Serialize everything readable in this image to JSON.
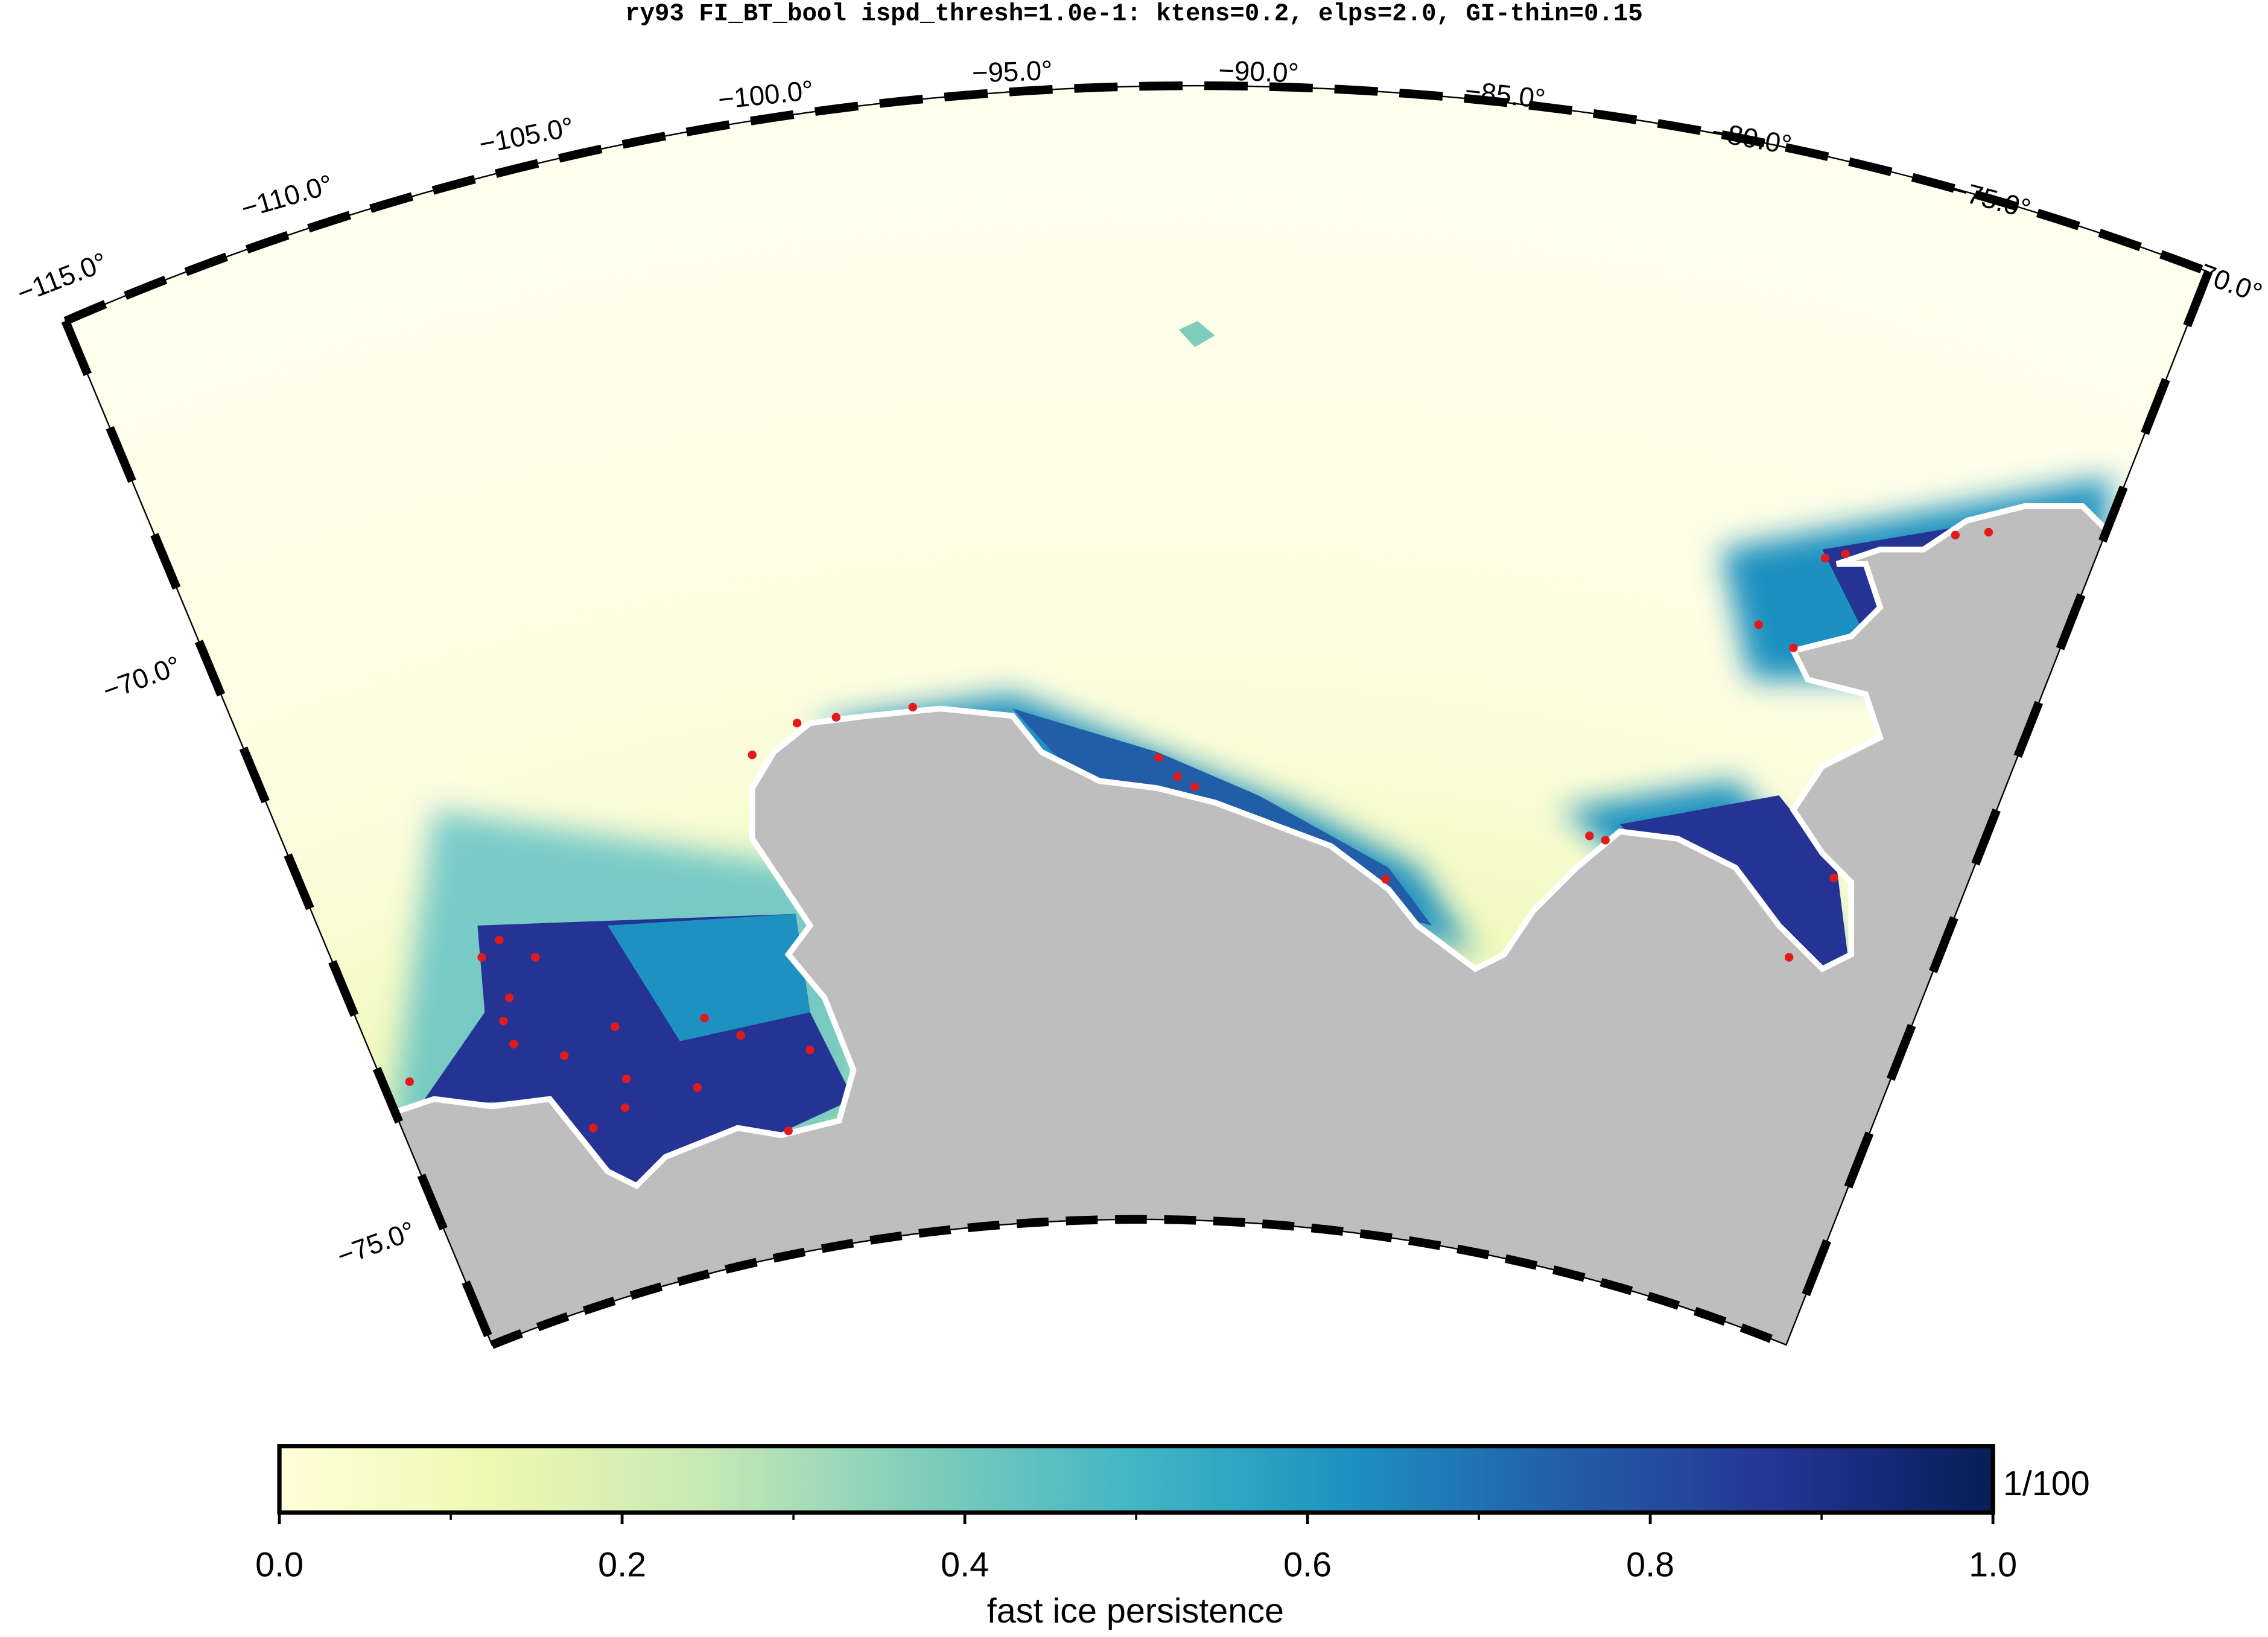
{
  "title": "ry93 FI_BT_bool ispd_thresh=1.0e-1: ktens=0.2, elps=2.0, GI-thin=0.15",
  "map": {
    "lon_labels": [
      "−115.0°",
      "−110.0°",
      "−105.0°",
      "−100.0°",
      "−95.0°",
      "−90.0°",
      "−85.0°",
      "−80.0°",
      "−75.0°",
      "−70.0°"
    ],
    "lat_labels": [
      "−70.0°",
      "−75.0°"
    ]
  },
  "colorbar": {
    "label": "fast ice persistence",
    "unit": "1/100",
    "lim": [
      0,
      1
    ],
    "ticks": [
      {
        "value": 0,
        "label": "0.0"
      },
      0.2,
      0.4,
      0.6,
      0.8,
      {
        "value": 1,
        "label": "1.0"
      }
    ],
    "colors": [
      "#ffffd9",
      "#edf8b1",
      "#c7e9b4",
      "#7fcdbb",
      "#41b6c4",
      "#1d91c0",
      "#225ea8",
      "#253494",
      "#081d58"
    ]
  }
}
